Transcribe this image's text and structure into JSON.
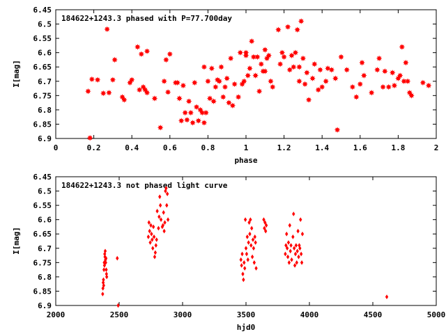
{
  "colors": {
    "points": "#ff0000",
    "axes": "#000000",
    "background": "#ffffff"
  },
  "chart_data": [
    {
      "type": "scatter",
      "title": "184622+1243.3 phased with P=77.700day",
      "xlabel": "phase",
      "ylabel": "I[mag]",
      "xlim": [
        0,
        2
      ],
      "ylim": [
        6.9,
        6.45
      ],
      "y_inverted": true,
      "grid": false,
      "marker": "star",
      "xticks": [
        0,
        0.2,
        0.4,
        0.6,
        0.8,
        1,
        1.2,
        1.4,
        1.6,
        1.8,
        2
      ],
      "xtick_labels": [
        "0",
        "0.2",
        "0.4",
        "0.6",
        "0.8",
        "1",
        "1.2",
        "1.4",
        "1.6",
        "1.8",
        "2"
      ],
      "yticks": [
        6.45,
        6.5,
        6.55,
        6.6,
        6.65,
        6.7,
        6.75,
        6.8,
        6.85,
        6.9
      ],
      "ytick_labels": [
        "6.45",
        "6.5",
        "6.55",
        "6.6",
        "6.65",
        "6.7",
        "6.75",
        "6.8",
        "6.85",
        "6.9"
      ],
      "series": [
        {
          "x": [
            0.17,
            0.18,
            0.19,
            0.22,
            0.25,
            0.27,
            0.28,
            0.3,
            0.31,
            0.35,
            0.36,
            0.39,
            0.4,
            0.43,
            0.44,
            0.45,
            0.46,
            0.47,
            0.48,
            0.48,
            0.52,
            0.55,
            0.57,
            0.58,
            0.59,
            0.6,
            0.63,
            0.64,
            0.65,
            0.66,
            0.67,
            0.68,
            0.69,
            0.7,
            0.71,
            0.72,
            0.73,
            0.74,
            0.75,
            0.76,
            0.77,
            0.78,
            0.78,
            0.79,
            0.8,
            0.81,
            0.82,
            0.83,
            0.84,
            0.85,
            0.86,
            0.87,
            0.88,
            0.89,
            0.9,
            0.91,
            0.92,
            0.93,
            0.94,
            0.96,
            0.97,
            0.98,
            0.99,
            1.0,
            1.0,
            1.01,
            1.02,
            1.03,
            1.04,
            1.05,
            1.06,
            1.07,
            1.08,
            1.09,
            1.1,
            1.1,
            1.11,
            1.12,
            1.13,
            1.14,
            1.17,
            1.18,
            1.19,
            1.2,
            1.22,
            1.23,
            1.24,
            1.25,
            1.26,
            1.27,
            1.28,
            1.28,
            1.29,
            1.3,
            1.31,
            1.32,
            1.33,
            1.35,
            1.36,
            1.38,
            1.39,
            1.4,
            1.42,
            1.43,
            1.45,
            1.47,
            1.48,
            1.5,
            1.53,
            1.56,
            1.58,
            1.6,
            1.61,
            1.62,
            1.66,
            1.69,
            1.7,
            1.72,
            1.73,
            1.75,
            1.77,
            1.78,
            1.8,
            1.81,
            1.82,
            1.83,
            1.84,
            1.85,
            1.86,
            1.87,
            1.93,
            1.96
          ],
          "y": [
            6.735,
            6.898,
            6.693,
            6.695,
            6.742,
            6.518,
            6.74,
            6.695,
            6.625,
            6.755,
            6.765,
            6.705,
            6.695,
            6.58,
            6.73,
            6.605,
            6.72,
            6.73,
            6.595,
            6.74,
            6.76,
            6.862,
            6.7,
            6.625,
            6.738,
            6.605,
            6.705,
            6.705,
            6.76,
            6.838,
            6.715,
            6.81,
            6.835,
            6.77,
            6.81,
            6.845,
            6.705,
            6.79,
            6.838,
            6.8,
            6.81,
            6.65,
            6.845,
            6.81,
            6.7,
            6.76,
            6.655,
            6.77,
            6.72,
            6.695,
            6.7,
            6.65,
            6.755,
            6.72,
            6.69,
            6.775,
            6.62,
            6.785,
            6.71,
            6.755,
            6.6,
            6.71,
            6.7,
            6.6,
            6.61,
            6.68,
            6.655,
            6.56,
            6.615,
            6.68,
            6.615,
            6.735,
            6.64,
            6.665,
            6.59,
            6.665,
            6.62,
            6.61,
            6.7,
            6.72,
            6.52,
            6.64,
            6.6,
            6.615,
            6.51,
            6.66,
            6.61,
            6.65,
            6.6,
            6.52,
            6.7,
            6.65,
            6.49,
            6.62,
            6.71,
            6.67,
            6.765,
            6.69,
            6.64,
            6.73,
            6.66,
            6.72,
            6.7,
            6.655,
            6.66,
            6.69,
            6.87,
            6.615,
            6.66,
            6.72,
            6.755,
            6.71,
            6.635,
            6.68,
            6.74,
            6.66,
            6.62,
            6.72,
            6.665,
            6.72,
            6.67,
            6.715,
            6.69,
            6.68,
            6.58,
            6.7,
            6.635,
            6.7,
            6.74,
            6.75,
            6.705,
            6.715
          ]
        }
      ]
    },
    {
      "type": "scatter",
      "title": "184622+1243.3 not phased light curve",
      "xlabel": "hjd0",
      "ylabel": "I[mag]",
      "xlim": [
        2000,
        5000
      ],
      "ylim": [
        6.9,
        6.45
      ],
      "y_inverted": true,
      "grid": false,
      "marker": "diamond",
      "xticks": [
        2000,
        2500,
        3000,
        3500,
        4000,
        4500,
        5000
      ],
      "xtick_labels": [
        "2000",
        "2500",
        "3000",
        "3500",
        "4000",
        "4500",
        "5000"
      ],
      "yticks": [
        6.45,
        6.5,
        6.55,
        6.6,
        6.65,
        6.7,
        6.75,
        6.8,
        6.85,
        6.9
      ],
      "ytick_labels": [
        "6.45",
        "6.5",
        "6.55",
        "6.6",
        "6.65",
        "6.7",
        "6.75",
        "6.8",
        "6.85",
        "6.9"
      ],
      "series": [
        {
          "x": [
            2370,
            2372,
            2374,
            2376,
            2378,
            2380,
            2382,
            2384,
            2386,
            2388,
            2390,
            2392,
            2394,
            2396,
            2398,
            2400,
            2402,
            2485,
            2492,
            2730,
            2735,
            2740,
            2745,
            2750,
            2755,
            2760,
            2765,
            2770,
            2775,
            2780,
            2785,
            2790,
            2795,
            2800,
            2810,
            2815,
            2820,
            2825,
            2830,
            2840,
            2845,
            2850,
            2855,
            2860,
            2865,
            2870,
            2875,
            2880,
            2885,
            3460,
            3465,
            3470,
            3475,
            3480,
            3485,
            3490,
            3495,
            3500,
            3505,
            3510,
            3515,
            3520,
            3525,
            3530,
            3535,
            3540,
            3545,
            3550,
            3555,
            3560,
            3565,
            3570,
            3575,
            3580,
            3640,
            3645,
            3650,
            3655,
            3660,
            3810,
            3815,
            3820,
            3825,
            3830,
            3835,
            3840,
            3845,
            3850,
            3855,
            3860,
            3870,
            3875,
            3880,
            3885,
            3890,
            3895,
            3900,
            3905,
            3910,
            3915,
            3920,
            3925,
            3930,
            3935,
            3940,
            3945,
            4610
          ],
          "y": [
            6.86,
            6.84,
            6.82,
            6.81,
            6.83,
            6.775,
            6.75,
            6.76,
            6.72,
            6.73,
            6.71,
            6.74,
            6.75,
            6.735,
            6.775,
            6.79,
            6.8,
            6.735,
            6.9,
            6.66,
            6.61,
            6.64,
            6.68,
            6.62,
            6.65,
            6.67,
            6.7,
            6.625,
            6.66,
            6.73,
            6.715,
            6.69,
            6.67,
            6.57,
            6.63,
            6.59,
            6.52,
            6.55,
            6.6,
            6.625,
            6.62,
            6.575,
            6.64,
            6.61,
            6.5,
            6.49,
            6.55,
            6.51,
            6.6,
            6.74,
            6.76,
            6.72,
            6.79,
            6.81,
            6.75,
            6.77,
            6.6,
            6.7,
            6.72,
            6.66,
            6.74,
            6.68,
            6.61,
            6.65,
            6.6,
            6.69,
            6.63,
            6.73,
            6.67,
            6.7,
            6.75,
            6.66,
            6.68,
            6.77,
            6.6,
            6.63,
            6.61,
            6.64,
            6.62,
            6.72,
            6.69,
            6.65,
            6.7,
            6.73,
            6.68,
            6.75,
            6.62,
            6.71,
            6.69,
            6.74,
            6.66,
            6.58,
            6.7,
            6.76,
            6.72,
            6.69,
            6.75,
            6.71,
            6.64,
            6.73,
            6.69,
            6.7,
            6.6,
            6.72,
            6.75,
            6.65,
            6.87
          ]
        }
      ]
    }
  ]
}
